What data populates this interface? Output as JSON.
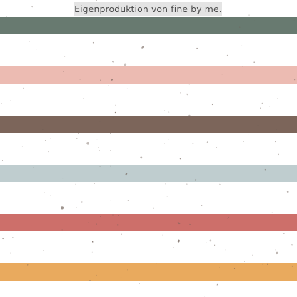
{
  "caption": "Eigenproduktion von fine by me.",
  "colors": {
    "background": "#ffffff",
    "stripe_sage_green": "#687a70",
    "stripe_blush_pink": "#ecbbb2",
    "stripe_brown": "#7c655a",
    "stripe_blue_grey": "#bfcdcf",
    "stripe_terracotta": "#cd6f6a",
    "stripe_ochre": "#e9aa5e",
    "speckle": "#6f5f57",
    "caption_background": "#e4e4e4",
    "caption_text": "#4a4a4a"
  }
}
